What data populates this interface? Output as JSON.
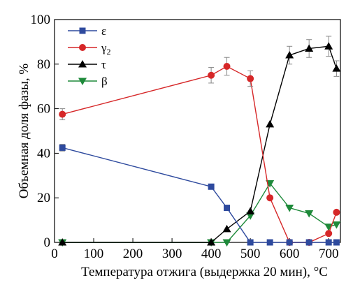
{
  "chart_data": {
    "type": "line",
    "xlabel": "Температура отжига (выдержка 20 мин), °C",
    "ylabel": "Объемная доля фазы, %",
    "xlim": [
      0,
      730
    ],
    "ylim": [
      0,
      100
    ],
    "xticks": [
      0,
      100,
      200,
      300,
      400,
      500,
      600,
      700
    ],
    "yticks": [
      0,
      20,
      40,
      60,
      80,
      100
    ],
    "grid": false,
    "legend_position": "top-left",
    "series": [
      {
        "name": "ε",
        "marker": "square",
        "color": "#2E4A9E",
        "x": [
          20,
          400,
          440,
          500,
          550,
          600,
          650,
          700,
          720
        ],
        "y": [
          42.5,
          25,
          15.5,
          0,
          0,
          0,
          0,
          0,
          0
        ],
        "err": [
          1.5,
          0,
          0,
          0,
          0,
          0,
          0,
          0,
          0
        ]
      },
      {
        "name": "γ",
        "subscript": "2",
        "marker": "circle",
        "color": "#D62728",
        "x": [
          20,
          400,
          440,
          500,
          550,
          600,
          650,
          700,
          720
        ],
        "y": [
          57.5,
          75,
          79,
          73.5,
          20,
          0,
          0,
          4,
          13.5
        ],
        "err": [
          2.5,
          3.5,
          4,
          3.5,
          0,
          0,
          0,
          0,
          0
        ]
      },
      {
        "name": "τ",
        "marker": "triangle-up",
        "color": "#000000",
        "x": [
          20,
          400,
          440,
          500,
          550,
          600,
          650,
          700,
          720
        ],
        "y": [
          0,
          0,
          6,
          14,
          53,
          84,
          87,
          88,
          78
        ],
        "err": [
          0,
          0,
          0,
          0,
          0,
          4,
          4,
          4.5,
          3.5
        ]
      },
      {
        "name": "β",
        "marker": "triangle-down",
        "color": "#1E8A3A",
        "x": [
          20,
          400,
          440,
          500,
          550,
          600,
          650,
          700,
          720
        ],
        "y": [
          0,
          0,
          0,
          12,
          26.5,
          15.5,
          13,
          7,
          8
        ],
        "err": [
          0,
          0,
          0,
          0,
          0,
          0,
          0,
          0,
          0
        ]
      }
    ]
  }
}
